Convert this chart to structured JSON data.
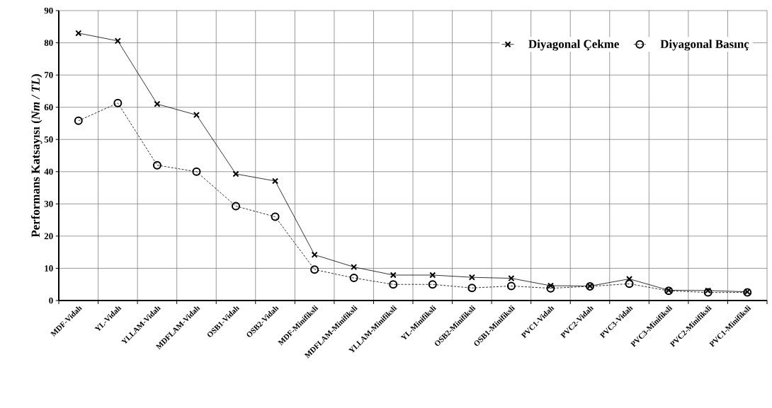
{
  "chart_data": {
    "type": "line",
    "ylabel": "Performans Katsayısı (*Nm / TL*)",
    "categories": [
      "MDF-Vidalı",
      "YL-Vidalı",
      "YLLAM-Vidalı",
      "MDFLAM-Vidalı",
      "OSB1-Vidalı",
      "OSB2-Vidalı",
      "MDF-Minifiksli",
      "MDFLAM-Minifiksli",
      "YLLAM-Minifiksli",
      "YL-Minifiksli",
      "OSB2-Minifiksli",
      "OSB1-Minifiksli",
      "PVC1-Vidalı",
      "PVC2-Vidalı",
      "PVC3-Vidalı",
      "PVC3-Minifiksli",
      "PVC2-Minifiksli",
      "PVC1-Minifiksli"
    ],
    "series": [
      {
        "name": "Diyagonal Çekme",
        "color": "#000000",
        "marker": "cross",
        "line_style": "solid",
        "values": [
          83,
          80.6,
          61,
          57.6,
          39.3,
          37.1,
          14.2,
          10.4,
          7.9,
          7.9,
          7.2,
          6.9,
          4.6,
          4.5,
          6.7,
          3.2,
          3.1,
          2.7
        ]
      },
      {
        "name": "Diyagonal Basınç",
        "color": "#000000",
        "marker": "circle",
        "line_style": "dashed",
        "values": [
          55.8,
          61.3,
          42,
          40,
          29.3,
          26,
          9.6,
          7,
          5,
          5,
          3.9,
          4.5,
          3.8,
          4.4,
          5.2,
          3,
          2.5,
          2.5
        ]
      }
    ],
    "ylim": [
      0,
      90
    ],
    "yticks": [
      0,
      10,
      20,
      30,
      40,
      50,
      60,
      70,
      80,
      90
    ],
    "grid": true,
    "legend": "top right"
  }
}
